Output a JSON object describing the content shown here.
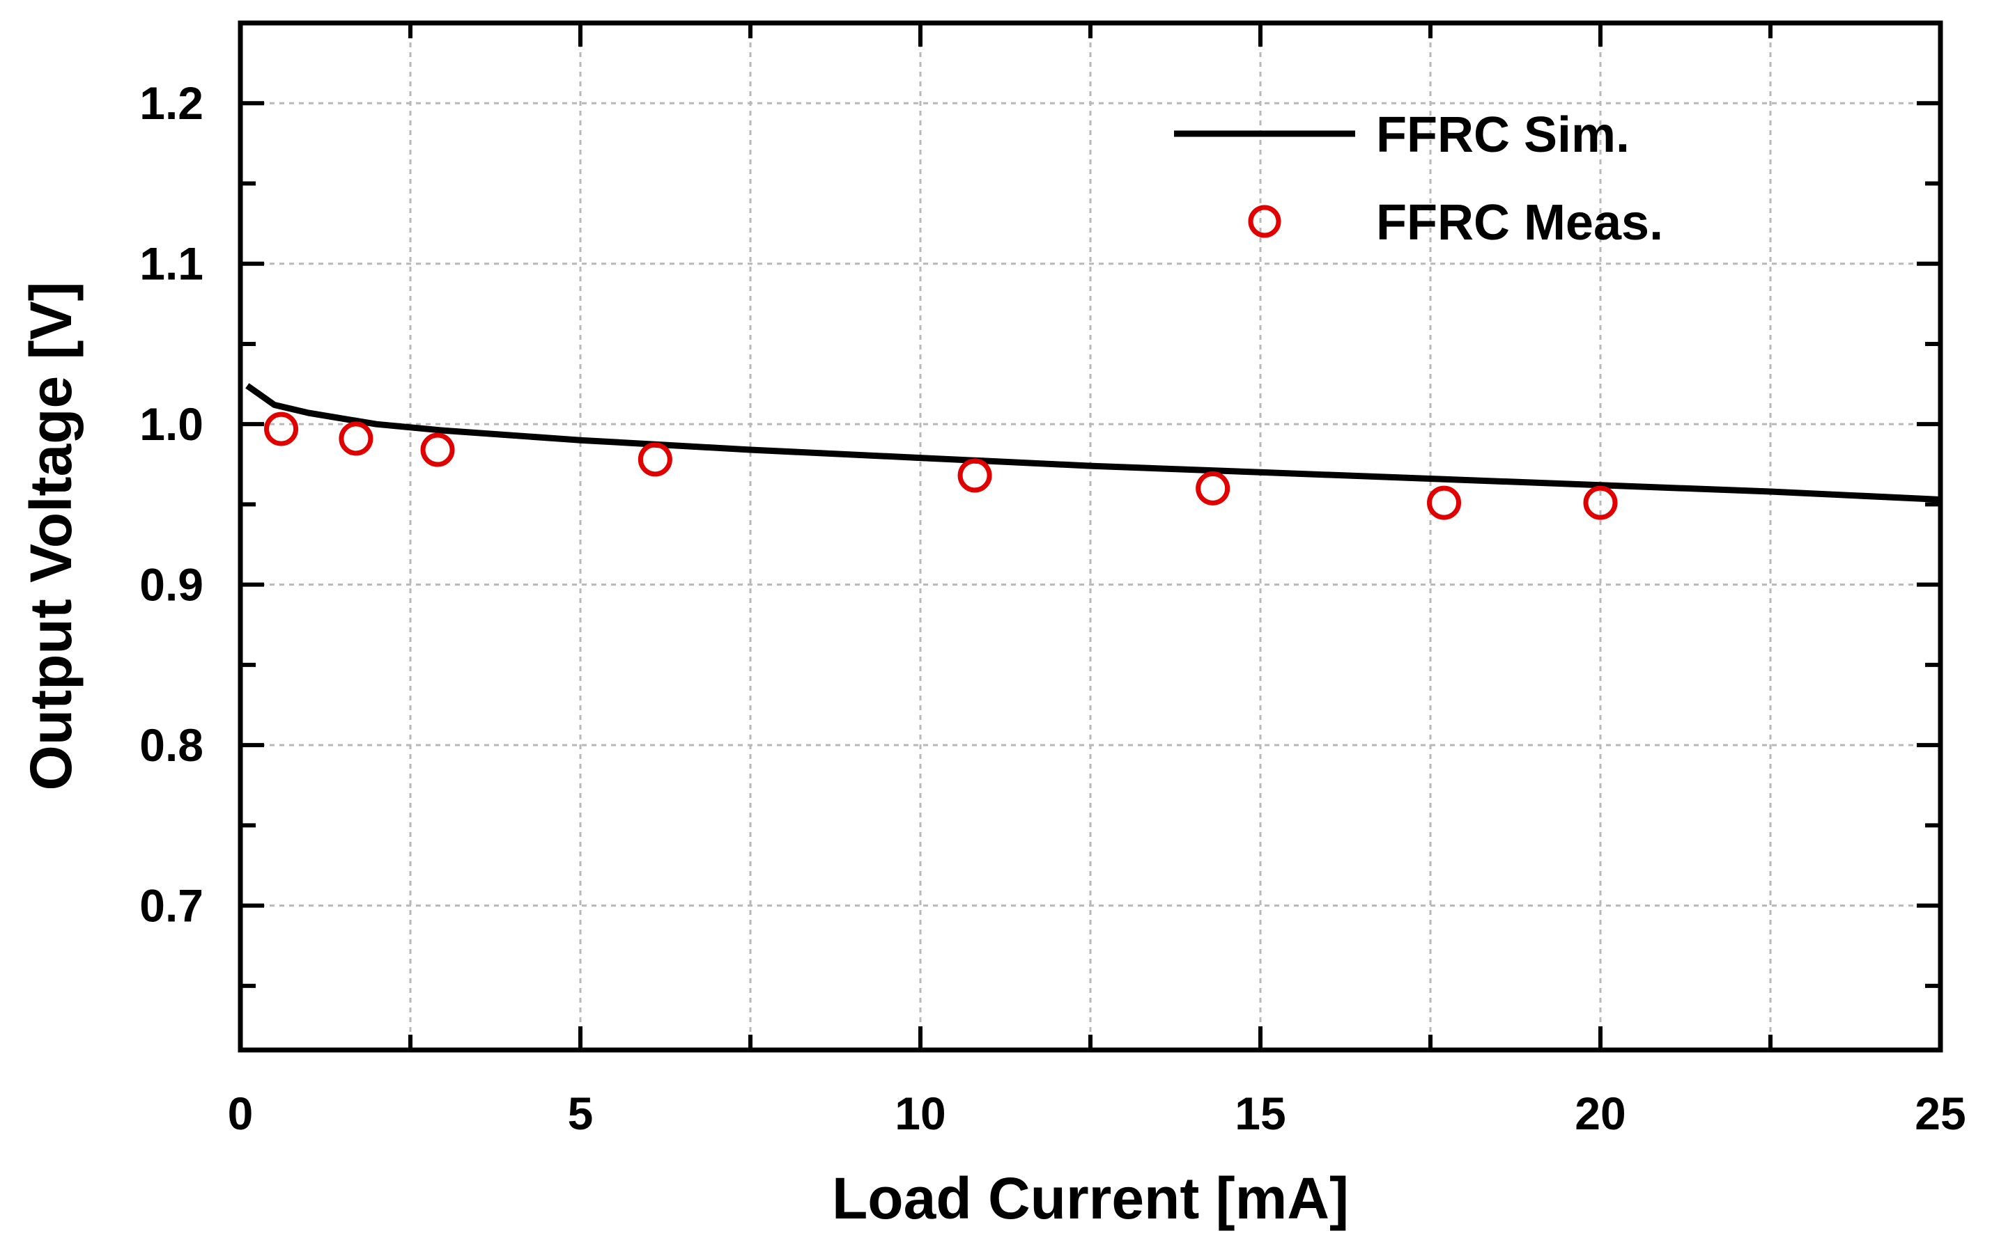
{
  "chart_data": {
    "type": "line",
    "title": "",
    "xlabel": "Load Current [mA]",
    "ylabel": "Output Voltage [V]",
    "xlim": [
      0,
      25
    ],
    "ylim": [
      0.61,
      1.25
    ],
    "xticks": [
      0,
      5,
      10,
      15,
      20,
      25
    ],
    "xtick_labels": [
      "0",
      "5",
      "10",
      "15",
      "20",
      "25"
    ],
    "yticks": [
      0.7,
      0.8,
      0.9,
      1.0,
      1.1,
      1.2
    ],
    "ytick_labels": [
      "0.7",
      "0.8",
      "0.9",
      "1.0",
      "1.1",
      "1.2"
    ],
    "grid": true,
    "legend_position": "top-right",
    "series": [
      {
        "name": "FFRC Sim.",
        "kind": "line",
        "color": "#000000",
        "x": [
          0.1,
          0.3,
          0.5,
          1,
          2,
          3,
          5,
          7.5,
          10,
          12.5,
          15,
          17.5,
          20,
          22.5,
          25
        ],
        "y": [
          1.024,
          1.018,
          1.012,
          1.007,
          1.0,
          0.996,
          0.99,
          0.984,
          0.979,
          0.974,
          0.97,
          0.966,
          0.962,
          0.958,
          0.953
        ]
      },
      {
        "name": "FFRC Meas.",
        "kind": "scatter",
        "color": "#e00000",
        "x": [
          0.6,
          1.7,
          2.9,
          6.1,
          10.8,
          14.3,
          17.7,
          20.0
        ],
        "y": [
          0.997,
          0.991,
          0.984,
          0.978,
          0.968,
          0.96,
          0.951,
          0.951
        ]
      }
    ]
  }
}
